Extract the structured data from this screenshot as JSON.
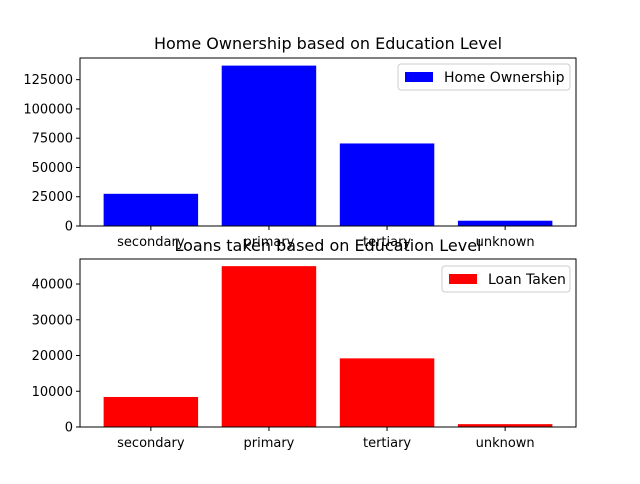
{
  "chart_data": [
    {
      "type": "bar",
      "title": "Home Ownership based on Education Level",
      "xlabel": "",
      "ylabel": "",
      "categories": [
        "secondary",
        "primary",
        "tertiary",
        "unknown"
      ],
      "series": [
        {
          "name": "Home Ownership",
          "values": [
            27500,
            137000,
            70500,
            4500
          ]
        }
      ],
      "ylim": [
        0,
        143500
      ],
      "yticks": [
        0,
        25000,
        50000,
        75000,
        100000,
        125000
      ],
      "ytick_labels": [
        "0",
        "25000",
        "50000",
        "75000",
        "100000",
        "125000"
      ],
      "legend_position": "top-right",
      "grid": false,
      "bar_color": "#0000ff"
    },
    {
      "type": "bar",
      "title": "Loans taken based on Education Level",
      "xlabel": "",
      "ylabel": "",
      "categories": [
        "secondary",
        "primary",
        "tertiary",
        "unknown"
      ],
      "series": [
        {
          "name": "Loan Taken",
          "values": [
            8400,
            45000,
            19200,
            800
          ]
        }
      ],
      "ylim": [
        0,
        47000
      ],
      "yticks": [
        0,
        10000,
        20000,
        30000,
        40000
      ],
      "ytick_labels": [
        "0",
        "10000",
        "20000",
        "30000",
        "40000"
      ],
      "legend_position": "top-right",
      "grid": false,
      "bar_color": "#ff0000"
    }
  ]
}
